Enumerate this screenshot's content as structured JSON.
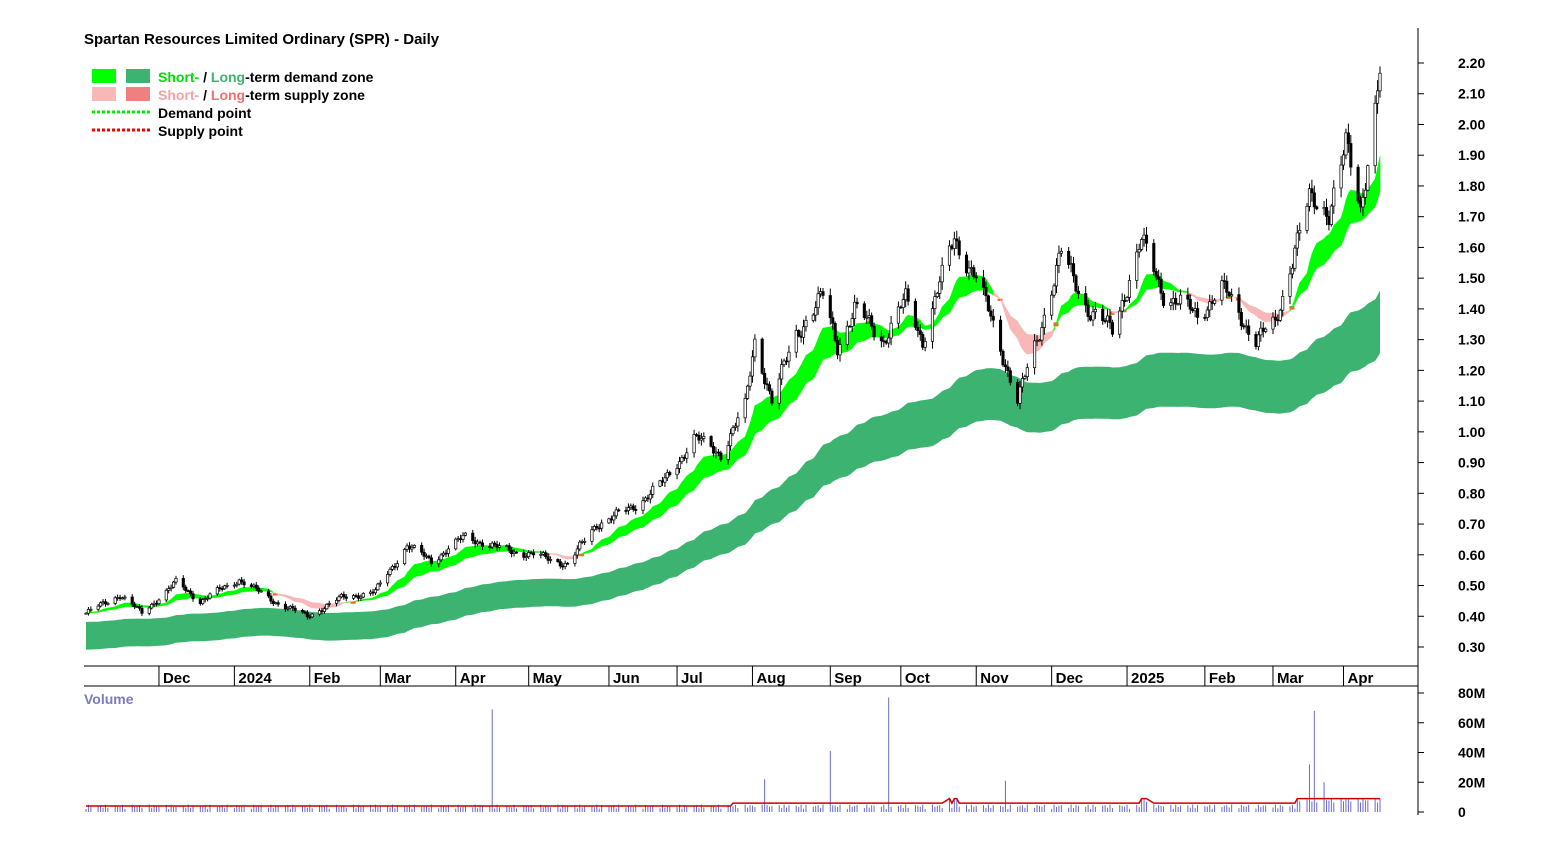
{
  "chart_data": {
    "type": "candlestick",
    "title": "Spartan Resources Limited Ordinary (SPR) - Daily",
    "legend": {
      "position": "top-left",
      "items": [
        {
          "swatches": [
            "#00ff00",
            "#3cb371"
          ],
          "parts": [
            {
              "text": "Short-",
              "color": "#00dd00"
            },
            {
              "text": " / ",
              "color": "#000000"
            },
            {
              "text": "Long",
              "color": "#3cb371"
            },
            {
              "text": "-term demand zone",
              "color": "#000000"
            }
          ]
        },
        {
          "swatches": [
            "#f8b8b8",
            "#f08080"
          ],
          "parts": [
            {
              "text": "Short-",
              "color": "#f4a3a3"
            },
            {
              "text": " / ",
              "color": "#000000"
            },
            {
              "text": "Long",
              "color": "#f07070"
            },
            {
              "text": "-term supply zone",
              "color": "#000000"
            }
          ]
        },
        {
          "line_color": "#00ee00",
          "parts": [
            {
              "text": "Demand point",
              "color": "#000000"
            }
          ]
        },
        {
          "line_color": "#ee0000",
          "parts": [
            {
              "text": "Supply point",
              "color": "#000000"
            }
          ]
        }
      ]
    },
    "y_axis": {
      "min": 0.26,
      "max": 2.26,
      "ticks": [
        "0.30",
        "0.40",
        "0.50",
        "0.60",
        "0.70",
        "0.80",
        "0.90",
        "1.00",
        "1.10",
        "1.20",
        "1.30",
        "1.40",
        "1.50",
        "1.60",
        "1.70",
        "1.80",
        "1.90",
        "2.00",
        "2.10",
        "2.20"
      ]
    },
    "x_axis": {
      "start": "2023-11-01",
      "end": "2025-04-16",
      "ticks": [
        {
          "label": "Dec",
          "date": "2023-12-01"
        },
        {
          "label": "2024",
          "date": "2024-01-01"
        },
        {
          "label": "Feb",
          "date": "2024-02-01"
        },
        {
          "label": "Mar",
          "date": "2024-03-01"
        },
        {
          "label": "Apr",
          "date": "2024-04-01"
        },
        {
          "label": "May",
          "date": "2024-05-01"
        },
        {
          "label": "Jun",
          "date": "2024-06-03"
        },
        {
          "label": "Jul",
          "date": "2024-07-01"
        },
        {
          "label": "Aug",
          "date": "2024-08-01"
        },
        {
          "label": "Sep",
          "date": "2024-09-02"
        },
        {
          "label": "Oct",
          "date": "2024-10-01"
        },
        {
          "label": "Nov",
          "date": "2024-11-01"
        },
        {
          "label": "Dec",
          "date": "2024-12-02"
        },
        {
          "label": "2025",
          "date": "2025-01-02"
        },
        {
          "label": "Feb",
          "date": "2025-02-03"
        },
        {
          "label": "Mar",
          "date": "2025-03-03"
        },
        {
          "label": "Apr",
          "date": "2025-04-01"
        }
      ]
    },
    "price_anchors": [
      [
        "2023-11-01",
        0.41
      ],
      [
        "2023-11-15",
        0.47
      ],
      [
        "2023-11-24",
        0.41
      ],
      [
        "2023-12-08",
        0.51
      ],
      [
        "2023-12-18",
        0.45
      ],
      [
        "2024-01-03",
        0.52
      ],
      [
        "2024-01-17",
        0.45
      ],
      [
        "2024-01-31",
        0.4
      ],
      [
        "2024-02-14",
        0.46
      ],
      [
        "2024-02-28",
        0.48
      ],
      [
        "2024-03-05",
        0.55
      ],
      [
        "2024-03-12",
        0.63
      ],
      [
        "2024-03-22",
        0.58
      ],
      [
        "2024-04-05",
        0.66
      ],
      [
        "2024-04-19",
        0.62
      ],
      [
        "2024-05-03",
        0.6
      ],
      [
        "2024-05-17",
        0.57
      ],
      [
        "2024-05-29",
        0.7
      ],
      [
        "2024-06-12",
        0.75
      ],
      [
        "2024-06-26",
        0.84
      ],
      [
        "2024-07-08",
        0.98
      ],
      [
        "2024-07-19",
        0.93
      ],
      [
        "2024-07-29",
        1.08
      ],
      [
        "2024-08-02",
        1.3
      ],
      [
        "2024-08-09",
        1.1
      ],
      [
        "2024-08-19",
        1.32
      ],
      [
        "2024-08-30",
        1.44
      ],
      [
        "2024-09-05",
        1.28
      ],
      [
        "2024-09-12",
        1.4
      ],
      [
        "2024-09-24",
        1.3
      ],
      [
        "2024-10-03",
        1.43
      ],
      [
        "2024-10-10",
        1.3
      ],
      [
        "2024-10-23",
        1.63
      ],
      [
        "2024-11-01",
        1.5
      ],
      [
        "2024-11-08",
        1.35
      ],
      [
        "2024-11-18",
        1.1
      ],
      [
        "2024-11-26",
        1.3
      ],
      [
        "2024-12-06",
        1.58
      ],
      [
        "2024-12-17",
        1.4
      ],
      [
        "2024-12-27",
        1.33
      ],
      [
        "2025-01-08",
        1.62
      ],
      [
        "2025-01-17",
        1.45
      ],
      [
        "2025-01-31",
        1.38
      ],
      [
        "2025-02-10",
        1.47
      ],
      [
        "2025-02-24",
        1.3
      ],
      [
        "2025-03-04",
        1.35
      ],
      [
        "2025-03-12",
        1.6
      ],
      [
        "2025-03-18",
        1.75
      ],
      [
        "2025-03-26",
        1.72
      ],
      [
        "2025-04-02",
        1.93
      ],
      [
        "2025-04-08",
        1.72
      ],
      [
        "2025-04-16",
        2.18
      ]
    ],
    "volume_y_axis": {
      "label": "Volume",
      "min": 0,
      "max": 80,
      "ticks": [
        "0",
        "20M",
        "40M",
        "60M",
        "80M"
      ]
    },
    "volume_average_line_color": "#cc0000",
    "volume_bar_color": "#6a6acf",
    "volume_spikes": [
      [
        "2024-04-16",
        69
      ],
      [
        "2024-08-06",
        22
      ],
      [
        "2024-09-02",
        41
      ],
      [
        "2024-09-26",
        77
      ],
      [
        "2024-11-13",
        21
      ],
      [
        "2025-03-18",
        32
      ],
      [
        "2025-03-20",
        68
      ],
      [
        "2025-03-24",
        20
      ]
    ],
    "zones": {
      "short_demand": "#00ff00",
      "long_demand": "#3cb371",
      "short_supply": "#f8b8b8",
      "crossover": "#f26522"
    }
  }
}
